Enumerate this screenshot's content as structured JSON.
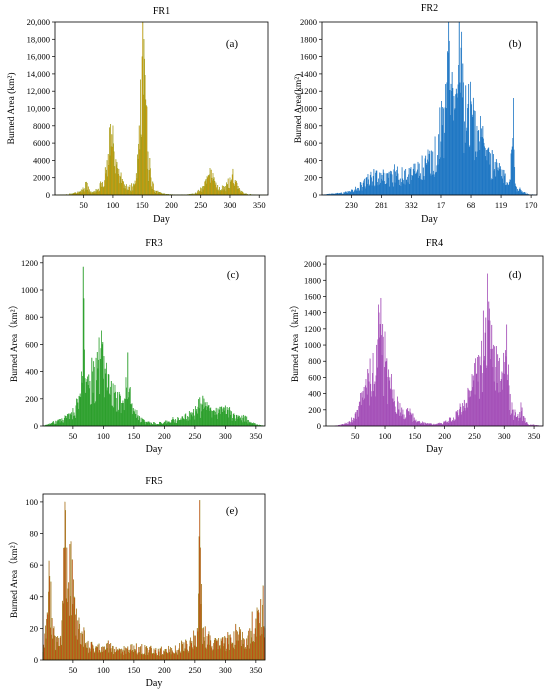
{
  "chart_data": [
    {
      "type": "bar",
      "panel": "FR1",
      "title": "FR1",
      "letter": "(a)",
      "xlabel": "Day",
      "ylabel": "Burned Area (km²)",
      "color": "#F29A0E",
      "edge_color": "#7E9A12",
      "xlim": [
        1,
        365
      ],
      "ylim": [
        0,
        20000
      ],
      "xticks": [
        50,
        100,
        150,
        200,
        250,
        300,
        350
      ],
      "xtick_labels": [
        "50",
        "100",
        "150",
        "200",
        "250",
        "300",
        "350"
      ],
      "yticks": [
        0,
        2000,
        4000,
        6000,
        8000,
        10000,
        12000,
        14000,
        16000,
        18000,
        20000
      ],
      "ytick_labels": [
        "0",
        "2000",
        "4000",
        "6000",
        "8000",
        "10,000",
        "12,000",
        "14,000",
        "16,000",
        "18,000",
        "20,000"
      ],
      "profile": [
        [
          1,
          0
        ],
        [
          15,
          20
        ],
        [
          30,
          150
        ],
        [
          45,
          400
        ],
        [
          55,
          1500
        ],
        [
          62,
          400
        ],
        [
          75,
          700
        ],
        [
          82,
          1500
        ],
        [
          90,
          4000
        ],
        [
          94,
          7800
        ],
        [
          98,
          7000
        ],
        [
          102,
          5000
        ],
        [
          106,
          3500
        ],
        [
          112,
          2200
        ],
        [
          120,
          1200
        ],
        [
          128,
          900
        ],
        [
          135,
          1300
        ],
        [
          140,
          2500
        ],
        [
          145,
          8000
        ],
        [
          150,
          16000
        ],
        [
          153,
          18000
        ],
        [
          156,
          11000
        ],
        [
          160,
          5000
        ],
        [
          165,
          2000
        ],
        [
          172,
          500
        ],
        [
          185,
          150
        ],
        [
          200,
          50
        ],
        [
          225,
          40
        ],
        [
          240,
          150
        ],
        [
          255,
          1000
        ],
        [
          262,
          2000
        ],
        [
          268,
          2900
        ],
        [
          274,
          1600
        ],
        [
          282,
          900
        ],
        [
          292,
          1000
        ],
        [
          300,
          2000
        ],
        [
          305,
          3000
        ],
        [
          310,
          1500
        ],
        [
          318,
          400
        ],
        [
          330,
          80
        ],
        [
          345,
          10
        ],
        [
          365,
          0
        ]
      ]
    },
    {
      "type": "bar",
      "panel": "FR2",
      "title": "FR2",
      "letter": "(b)",
      "xlabel": "Day",
      "ylabel": "Burned Area(km²)",
      "color": "#1F77C4",
      "edge_color": "#1F77C4",
      "xlim": [
        180,
        545
      ],
      "ylim": [
        0,
        2000
      ],
      "xticks": [
        230,
        281,
        332,
        382,
        433,
        484,
        535
      ],
      "xtick_labels": [
        "230",
        "281",
        "332",
        "17",
        "68",
        "119",
        "170"
      ],
      "yticks": [
        0,
        200,
        400,
        600,
        800,
        1000,
        1200,
        1400,
        1600,
        1800,
        2000
      ],
      "ytick_labels": [
        "0",
        "200",
        "400",
        "600",
        "800",
        "1000",
        "1200",
        "1400",
        "1600",
        "1800",
        "2000"
      ],
      "profile": [
        [
          180,
          0
        ],
        [
          190,
          10
        ],
        [
          210,
          20
        ],
        [
          225,
          40
        ],
        [
          240,
          80
        ],
        [
          250,
          140
        ],
        [
          262,
          230
        ],
        [
          272,
          280
        ],
        [
          282,
          230
        ],
        [
          292,
          250
        ],
        [
          305,
          270
        ],
        [
          320,
          280
        ],
        [
          335,
          300
        ],
        [
          345,
          360
        ],
        [
          355,
          420
        ],
        [
          368,
          500
        ],
        [
          378,
          700
        ],
        [
          386,
          1000
        ],
        [
          392,
          1300
        ],
        [
          396,
          1780
        ],
        [
          400,
          1200
        ],
        [
          406,
          1000
        ],
        [
          412,
          1500
        ],
        [
          416,
          1700
        ],
        [
          420,
          1300
        ],
        [
          428,
          1050
        ],
        [
          436,
          900
        ],
        [
          446,
          750
        ],
        [
          456,
          560
        ],
        [
          466,
          480
        ],
        [
          474,
          380
        ],
        [
          482,
          300
        ],
        [
          490,
          220
        ],
        [
          498,
          150
        ],
        [
          505,
          1120
        ],
        [
          508,
          130
        ],
        [
          520,
          40
        ],
        [
          530,
          10
        ],
        [
          545,
          0
        ]
      ]
    },
    {
      "type": "bar",
      "panel": "FR3",
      "title": "FR3",
      "letter": "(c)",
      "xlabel": "Day",
      "ylabel": "Burned Area（km²）",
      "color": "#2DA02D",
      "edge_color": "#2DA02D",
      "xlim": [
        1,
        365
      ],
      "ylim": [
        0,
        1250
      ],
      "xticks": [
        50,
        100,
        150,
        200,
        250,
        300,
        350
      ],
      "xtick_labels": [
        "50",
        "100",
        "150",
        "200",
        "250",
        "300",
        "350"
      ],
      "yticks": [
        0,
        200,
        400,
        600,
        800,
        1000,
        1200
      ],
      "ytick_labels": [
        "0",
        "200",
        "400",
        "600",
        "800",
        "1000",
        "1200"
      ],
      "profile": [
        [
          1,
          0
        ],
        [
          15,
          20
        ],
        [
          30,
          50
        ],
        [
          45,
          90
        ],
        [
          55,
          150
        ],
        [
          60,
          220
        ],
        [
          64,
          400
        ],
        [
          67,
          1170
        ],
        [
          70,
          350
        ],
        [
          75,
          300
        ],
        [
          82,
          400
        ],
        [
          88,
          500
        ],
        [
          93,
          650
        ],
        [
          98,
          600
        ],
        [
          103,
          420
        ],
        [
          108,
          380
        ],
        [
          113,
          330
        ],
        [
          120,
          250
        ],
        [
          128,
          220
        ],
        [
          135,
          200
        ],
        [
          140,
          540
        ],
        [
          145,
          160
        ],
        [
          152,
          120
        ],
        [
          160,
          60
        ],
        [
          170,
          30
        ],
        [
          185,
          20
        ],
        [
          200,
          30
        ],
        [
          215,
          50
        ],
        [
          230,
          70
        ],
        [
          245,
          100
        ],
        [
          255,
          140
        ],
        [
          265,
          200
        ],
        [
          272,
          150
        ],
        [
          280,
          110
        ],
        [
          290,
          120
        ],
        [
          300,
          150
        ],
        [
          306,
          130
        ],
        [
          315,
          80
        ],
        [
          325,
          60
        ],
        [
          332,
          70
        ],
        [
          340,
          30
        ],
        [
          352,
          10
        ],
        [
          365,
          0
        ]
      ]
    },
    {
      "type": "bar",
      "panel": "FR4",
      "title": "FR4",
      "letter": "(d)",
      "xlabel": "Day",
      "ylabel": "Burned Area（km²）",
      "color": "#A44FB8",
      "edge_color": "#A44FB8",
      "xlim": [
        1,
        365
      ],
      "ylim": [
        0,
        2100
      ],
      "xticks": [
        50,
        100,
        150,
        200,
        250,
        300,
        350
      ],
      "xtick_labels": [
        "50",
        "100",
        "150",
        "200",
        "250",
        "300",
        "350"
      ],
      "yticks": [
        0,
        200,
        400,
        600,
        800,
        1000,
        1200,
        1400,
        1600,
        1800,
        2000
      ],
      "ytick_labels": [
        "0",
        "200",
        "400",
        "600",
        "800",
        "1000",
        "1200",
        "1400",
        "1600",
        "1800",
        "2000"
      ],
      "profile": [
        [
          1,
          0
        ],
        [
          15,
          0
        ],
        [
          30,
          20
        ],
        [
          40,
          60
        ],
        [
          50,
          150
        ],
        [
          58,
          300
        ],
        [
          65,
          480
        ],
        [
          72,
          650
        ],
        [
          80,
          900
        ],
        [
          86,
          1000
        ],
        [
          90,
          1400
        ],
        [
          93,
          1580
        ],
        [
          97,
          1100
        ],
        [
          102,
          800
        ],
        [
          108,
          600
        ],
        [
          115,
          450
        ],
        [
          122,
          300
        ],
        [
          130,
          200
        ],
        [
          138,
          220
        ],
        [
          145,
          150
        ],
        [
          155,
          60
        ],
        [
          170,
          30
        ],
        [
          185,
          20
        ],
        [
          200,
          50
        ],
        [
          210,
          100
        ],
        [
          220,
          180
        ],
        [
          230,
          280
        ],
        [
          240,
          450
        ],
        [
          248,
          620
        ],
        [
          255,
          850
        ],
        [
          262,
          1050
        ],
        [
          268,
          1150
        ],
        [
          272,
          1880
        ],
        [
          276,
          1300
        ],
        [
          282,
          1000
        ],
        [
          290,
          800
        ],
        [
          298,
          650
        ],
        [
          304,
          1250
        ],
        [
          308,
          500
        ],
        [
          315,
          200
        ],
        [
          322,
          120
        ],
        [
          328,
          290
        ],
        [
          332,
          120
        ],
        [
          340,
          20
        ],
        [
          365,
          0
        ]
      ]
    },
    {
      "type": "bar",
      "panel": "FR5",
      "title": "FR5",
      "letter": "(e)",
      "xlabel": "Day",
      "ylabel": "Burned Area（km²）",
      "color": "#E8241A",
      "edge_color": "#7E9A12",
      "xlim": [
        1,
        365
      ],
      "ylim": [
        0,
        105
      ],
      "xticks": [
        50,
        100,
        150,
        200,
        250,
        300,
        350
      ],
      "xtick_labels": [
        "50",
        "100",
        "150",
        "200",
        "250",
        "300",
        "350"
      ],
      "yticks": [
        0,
        20,
        40,
        60,
        80,
        100
      ],
      "ytick_labels": [
        "0",
        "20",
        "40",
        "60",
        "80",
        "100"
      ],
      "profile": [
        [
          1,
          5
        ],
        [
          8,
          30
        ],
        [
          12,
          53
        ],
        [
          18,
          20
        ],
        [
          25,
          15
        ],
        [
          32,
          25
        ],
        [
          37,
          100
        ],
        [
          42,
          45
        ],
        [
          47,
          75
        ],
        [
          52,
          40
        ],
        [
          58,
          25
        ],
        [
          65,
          18
        ],
        [
          75,
          12
        ],
        [
          90,
          8
        ],
        [
          110,
          10
        ],
        [
          130,
          7
        ],
        [
          150,
          9
        ],
        [
          170,
          8
        ],
        [
          190,
          7
        ],
        [
          210,
          8
        ],
        [
          230,
          10
        ],
        [
          245,
          12
        ],
        [
          255,
          18
        ],
        [
          258,
          101
        ],
        [
          262,
          20
        ],
        [
          270,
          15
        ],
        [
          285,
          12
        ],
        [
          300,
          14
        ],
        [
          320,
          18
        ],
        [
          340,
          20
        ],
        [
          355,
          30
        ],
        [
          362,
          47
        ],
        [
          365,
          20
        ]
      ]
    }
  ]
}
